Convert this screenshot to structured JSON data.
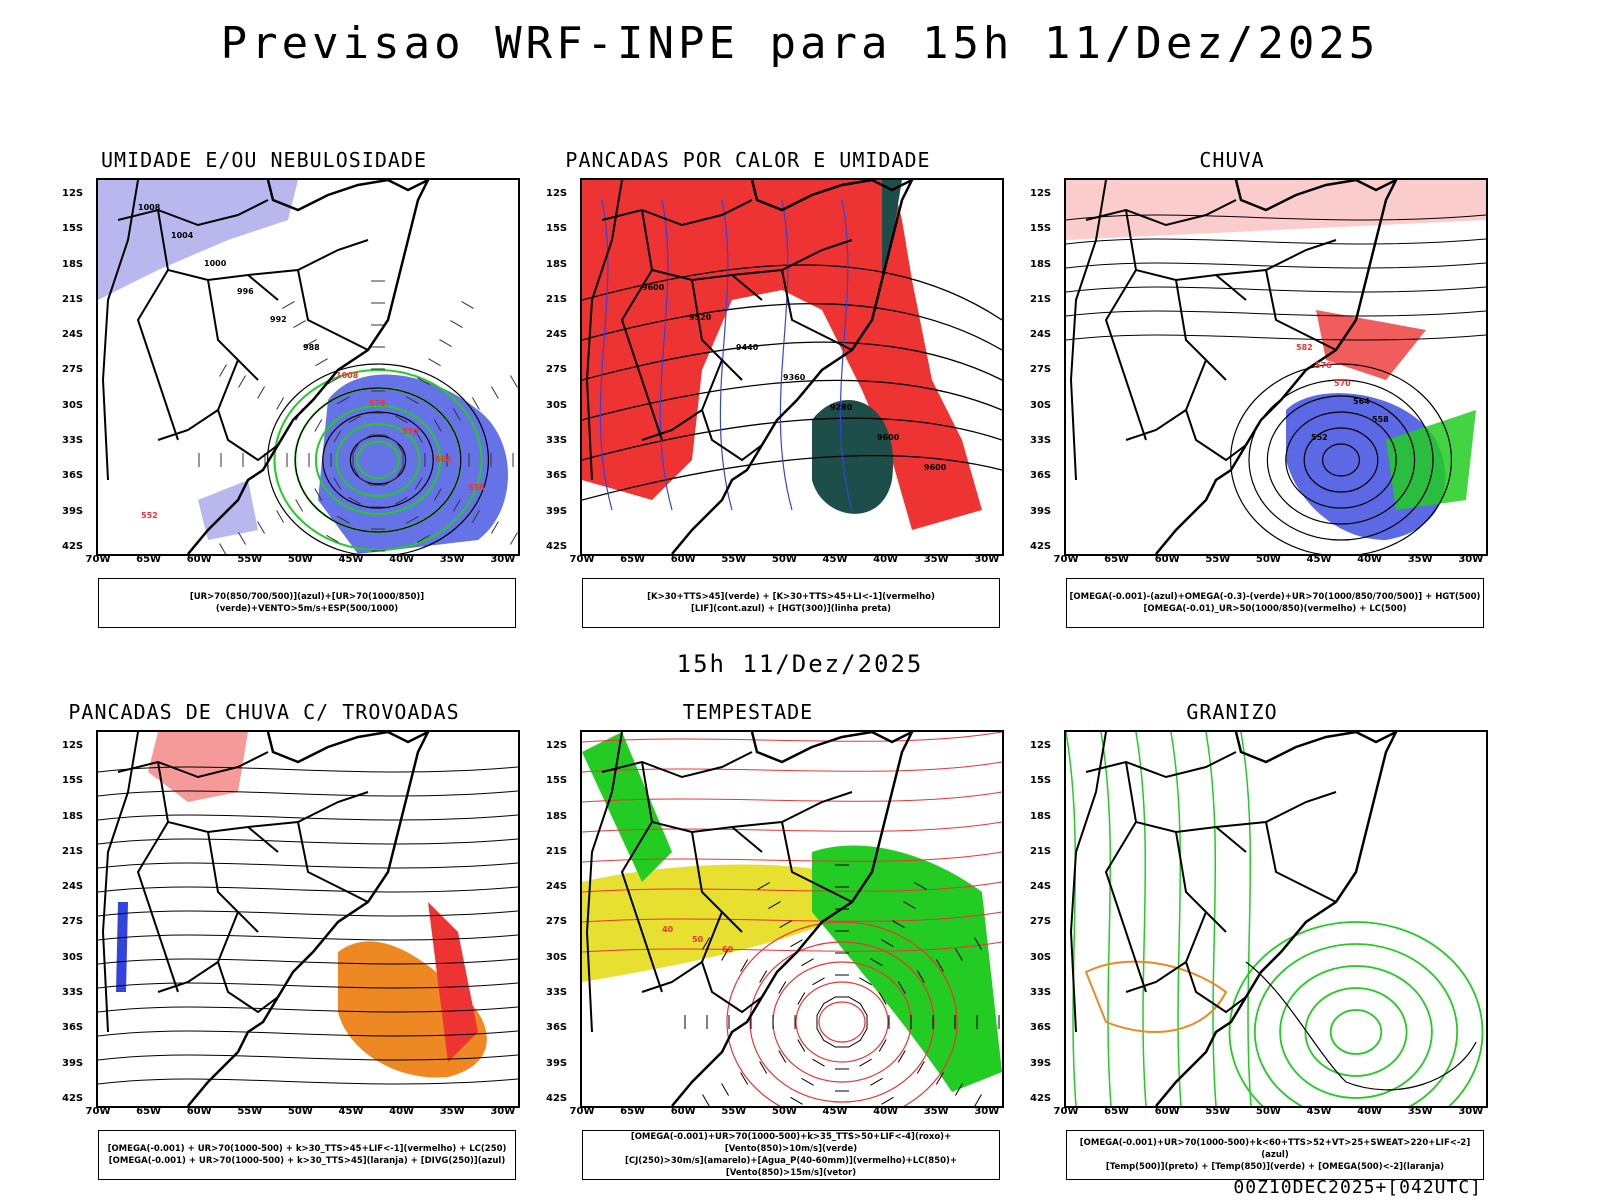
{
  "title": "Previsao WRF-INPE  para 15h 11/Dez/2025",
  "subtitle": "15h 11/Dez/2025",
  "footer": "00Z10DEC2025+[042UTC]",
  "lat_labels": [
    "12S",
    "15S",
    "18S",
    "21S",
    "24S",
    "27S",
    "30S",
    "33S",
    "36S",
    "39S",
    "42S"
  ],
  "lon_labels": [
    "70W",
    "65W",
    "60W",
    "55W",
    "50W",
    "45W",
    "40W",
    "35W",
    "30W"
  ],
  "colors": {
    "blue": "#3344dd",
    "lightblue": "#b8b8ee",
    "green": "#22cc22",
    "red": "#ee3333",
    "darkteal": "#1e4e4a",
    "yellow": "#e8e030",
    "orange": "#ee8822",
    "black": "#000000"
  },
  "panels": [
    {
      "id": "umidade",
      "title": "UMIDADE E/OU NEBULOSIDADE",
      "legend": [
        "[UR>70(850/700/500)](azul)+[UR>70(1000/850)](verde)+VENTO>5m/s+ESP(500/1000)"
      ],
      "labels": [
        "1008",
        "1004",
        "1000",
        "996",
        "992",
        "988",
        "1008",
        "576",
        "570",
        "564",
        "558",
        "552"
      ]
    },
    {
      "id": "pancadas_calor",
      "title": "PANCADAS POR CALOR E UMIDADE",
      "legend": [
        "[K>30+TTS>45](verde) + [K>30+TTS>45+LI<-1](vermelho)",
        "[LIF](cont.azul) + [HGT(300)](linha preta)"
      ],
      "labels": [
        "9600",
        "9520",
        "9440",
        "9360",
        "9280",
        "9600",
        "9600"
      ]
    },
    {
      "id": "chuva",
      "title": "CHUVA",
      "legend": [
        "[OMEGA(-0.001)-(azul)+OMEGA(-0.3)-(verde)+UR>70(1000/850/700/500)] + HGT(500)",
        "[OMEGA(-0.01)_UR>50(1000/850)(vermelho) + LC(500)"
      ],
      "labels": [
        "582",
        "576",
        "570",
        "564",
        "558",
        "552"
      ]
    },
    {
      "id": "trovoadas",
      "title": "PANCADAS DE CHUVA C/ TROVOADAS",
      "legend": [
        "[OMEGA(-0.001) + UR>70(1000-500) + k>30_TTS>45+LIF<-1](vermelho) + LC(250)",
        "[OMEGA(-0.001) + UR>70(1000-500) + k>30_TTS>45](laranja) + [DIVG(250)](azul)"
      ],
      "labels": []
    },
    {
      "id": "tempestade",
      "title": "TEMPESTADE",
      "legend": [
        "[OMEGA(-0.001)+UR>70(1000-500)+k>35_TTS>50+LIF<-4](roxo)+[Vento(850)>10m/s](verde)",
        "[CJ(250)>30m/s](amarelo)+[Agua_P(40-60mm)](vermelho)+LC(850)+[Vento(850)>15m/s](vetor)"
      ],
      "labels": [
        "40",
        "50",
        "60"
      ]
    },
    {
      "id": "granizo",
      "title": "GRANIZO",
      "legend": [
        "[OMEGA(-0.001)+UR>70(1000-500)+k<60+TTS>52+VT>25+SWEAT>220+LIF<-2](azul)",
        "[Temp(500)](preto) + [Temp(850)](verde) + [OMEGA(500)<-2](laranja)"
      ],
      "labels": []
    }
  ]
}
